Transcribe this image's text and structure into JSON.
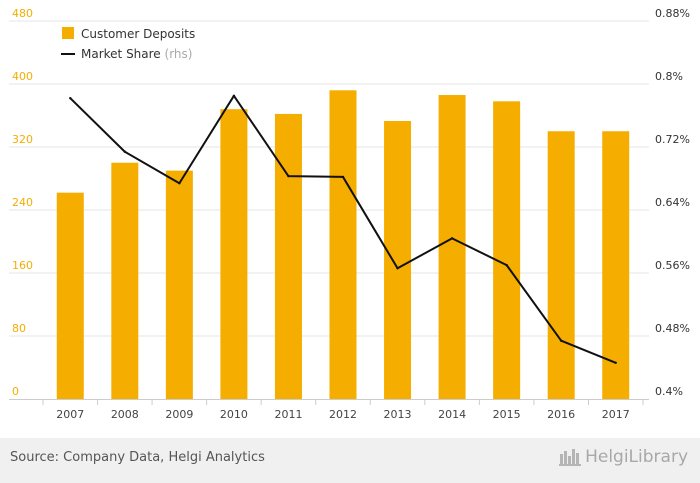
{
  "chart_data": {
    "type": "bar",
    "categories": [
      "2007",
      "2008",
      "2009",
      "2010",
      "2011",
      "2012",
      "2013",
      "2014",
      "2015",
      "2016",
      "2017"
    ],
    "series": [
      {
        "name": "Customer Deposits",
        "type": "bar",
        "axis": "left",
        "color": "#f5ae00",
        "values": [
          262,
          300,
          290,
          368,
          362,
          392,
          353,
          386,
          378,
          340,
          340
        ]
      },
      {
        "name": "Market Share",
        "name_suffix": "(rhs)",
        "type": "line",
        "axis": "right",
        "color": "#111111",
        "values": [
          0.782,
          0.714,
          0.674,
          0.785,
          0.683,
          0.682,
          0.566,
          0.604,
          0.57,
          0.474,
          0.446
        ]
      }
    ],
    "yaxis_left": {
      "ticks": [
        "0",
        "80",
        "160",
        "240",
        "320",
        "400",
        "480"
      ],
      "ylim": [
        0,
        480
      ],
      "color": "#f5ae00"
    },
    "yaxis_right": {
      "ticks": [
        "0.4%",
        "0.48%",
        "0.56%",
        "0.64%",
        "0.72%",
        "0.8%",
        "0.88%"
      ],
      "ylim": [
        0.4,
        0.88
      ]
    },
    "grid": true,
    "legend_position": "top-left"
  },
  "footer": {
    "source": "Source: Company Data, Helgi Analytics",
    "brand": "HelgiLibrary",
    "logo_icon": "helgi-library-logo-icon"
  }
}
